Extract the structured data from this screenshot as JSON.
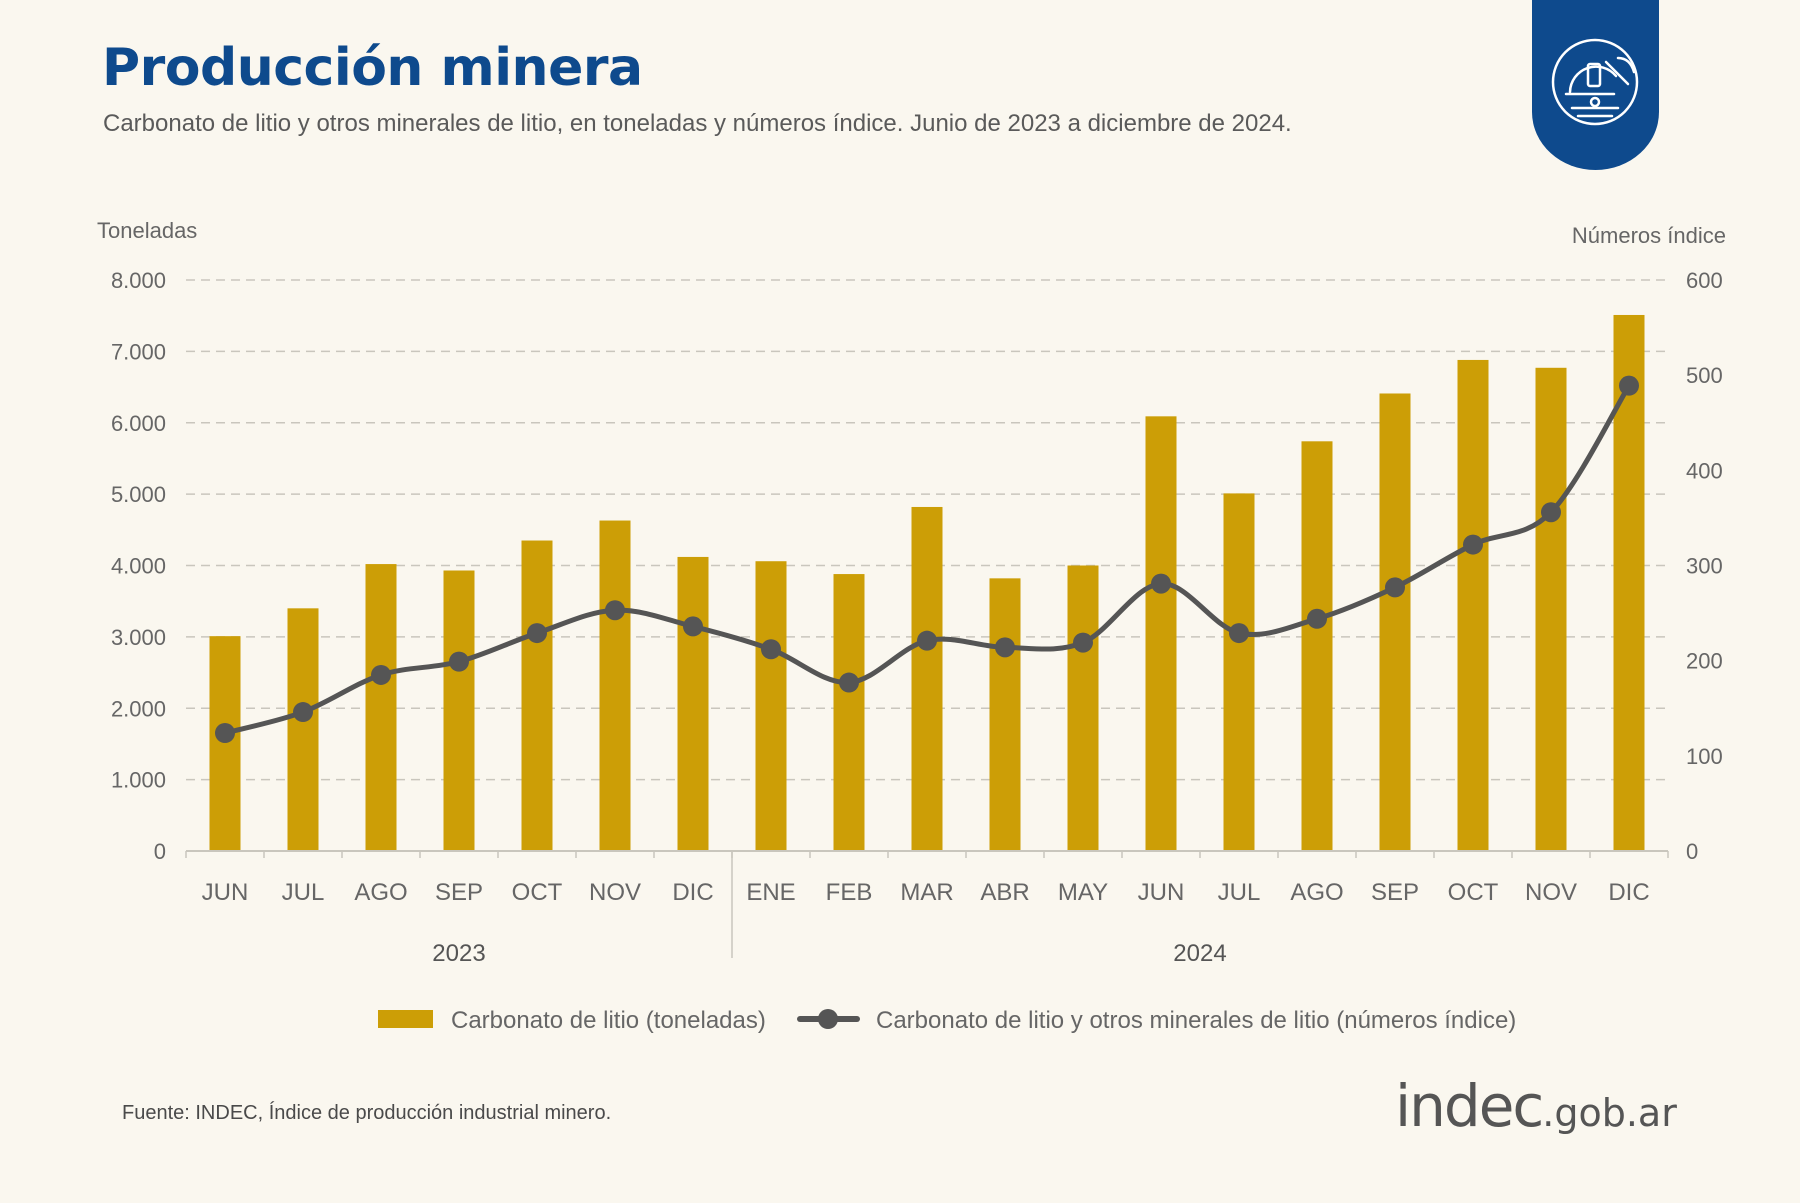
{
  "header": {
    "title": "Producción minera",
    "subtitle": "Carbonato de litio y otros minerales de litio, en toneladas y números índice. Junio de 2023 a diciembre de 2024."
  },
  "badge": {
    "icon": "miner-helmet-pickaxe-icon",
    "color": "#0e4a8d"
  },
  "chart_data": {
    "type": "bar",
    "categories": [
      "JUN",
      "JUL",
      "AGO",
      "SEP",
      "OCT",
      "NOV",
      "DIC",
      "ENE",
      "FEB",
      "MAR",
      "ABR",
      "MAY",
      "JUN",
      "JUL",
      "AGO",
      "SEP",
      "OCT",
      "NOV",
      "DIC"
    ],
    "year_groups": [
      {
        "label": "2023",
        "count": 7
      },
      {
        "label": "2024",
        "count": 12
      }
    ],
    "ylabel_left": "Toneladas",
    "ylabel_right": "Números índice",
    "ylim_left": [
      0,
      8000
    ],
    "ylim_right": [
      0,
      600
    ],
    "yticks_left": [
      "0",
      "1.000",
      "2.000",
      "3.000",
      "4.000",
      "5.000",
      "6.000",
      "7.000",
      "8.000"
    ],
    "yticks_right": [
      "0",
      "100",
      "200",
      "300",
      "400",
      "500",
      "600"
    ],
    "grid": true,
    "legend_position": "bottom",
    "series": [
      {
        "name": "Carbonato de litio (toneladas)",
        "type": "bar",
        "axis": "left",
        "color": "#cc9e06",
        "values": [
          3010,
          3400,
          4020,
          3930,
          4350,
          4630,
          4120,
          4060,
          3880,
          4820,
          3820,
          4000,
          6090,
          5010,
          5740,
          6410,
          6880,
          6770,
          7510
        ]
      },
      {
        "name": "Carbonato de litio y otros minerales de litio (números índice)",
        "type": "line",
        "axis": "right",
        "color": "#555555",
        "values": [
          124,
          146,
          185,
          199,
          229,
          253,
          236,
          212,
          177,
          221,
          214,
          219,
          281,
          229,
          244,
          277,
          322,
          356,
          489
        ]
      }
    ]
  },
  "footer": {
    "source": "Fuente: INDEC, Índice de producción industrial minero.",
    "brand_main": "indec",
    "brand_suffix": ".gob.ar"
  }
}
